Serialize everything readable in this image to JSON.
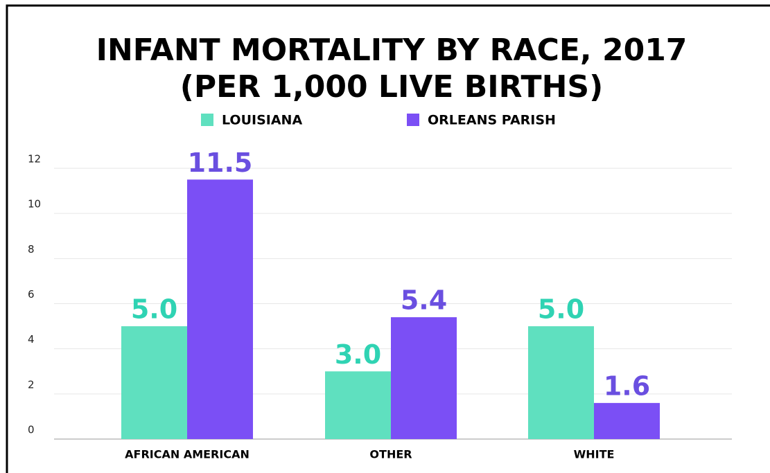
{
  "chart_data": {
    "type": "bar",
    "title": "INFANT MORTALITY BY RACE, 2017",
    "subtitle": "(PER 1,000 LIVE BIRTHS)",
    "categories": [
      "AFRICAN AMERICAN",
      "OTHER",
      "WHITE"
    ],
    "series": [
      {
        "name": "LOUISIANA",
        "color": "#5fe0bf",
        "values": [
          5,
          3,
          5
        ],
        "value_labels": [
          "5.0",
          "3.0",
          "5.0"
        ]
      },
      {
        "name": "ORLEANS PARISH",
        "color": "#7b4ff5",
        "values": [
          11.5,
          5.4,
          1.6
        ],
        "value_labels": [
          "11.5",
          "5.4",
          "1.6"
        ]
      }
    ],
    "ylim": [
      0,
      12
    ],
    "yticks": [
      0,
      2,
      4,
      6,
      8,
      10,
      12
    ],
    "grid": true
  }
}
